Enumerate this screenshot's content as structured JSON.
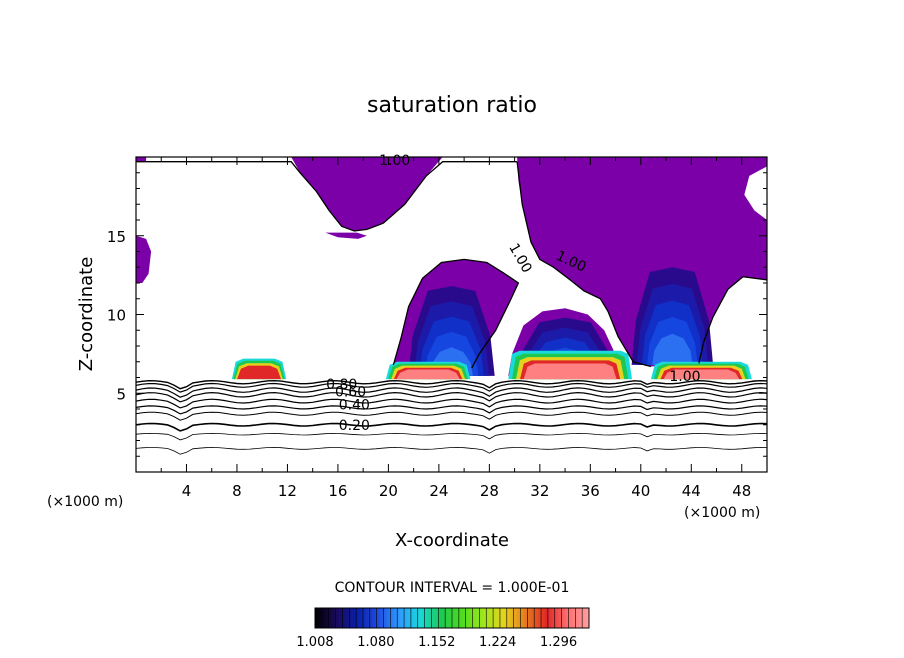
{
  "chart_data": {
    "type": "heatmap",
    "title": "saturation ratio",
    "xlabel": "X-coordinate",
    "ylabel": "Z-coordinate",
    "x_units": "(×1000 m)",
    "z_units": "(×1000 m)",
    "xlim": [
      0,
      50
    ],
    "ylim": [
      0,
      20
    ],
    "x_ticks": [
      4,
      8,
      12,
      16,
      20,
      24,
      28,
      32,
      36,
      40,
      44,
      48
    ],
    "y_ticks": [
      5,
      10,
      15
    ],
    "contour_labels": [
      {
        "text": "1.00",
        "x": 20.5,
        "z": 19.8
      },
      {
        "text": "1.00",
        "x": 30.5,
        "z": 13.6
      },
      {
        "text": "1.00",
        "x": 34.5,
        "z": 13.4
      },
      {
        "text": "1.00",
        "x": 43.5,
        "z": 6.1
      },
      {
        "text": "0.80",
        "x": 16.3,
        "z": 5.6
      },
      {
        "text": "0.60",
        "x": 17.0,
        "z": 5.1
      },
      {
        "text": "0.40",
        "x": 17.3,
        "z": 4.3
      },
      {
        "text": "0.20",
        "x": 17.3,
        "z": 3.0
      }
    ],
    "contour_interval_label": "CONTOUR INTERVAL = 1.000E-01",
    "colorbar": {
      "min": 1.008,
      "max": 1.332,
      "tick_labels": [
        "1.008",
        "1.080",
        "1.152",
        "1.224",
        "1.296"
      ],
      "colors": [
        "#000000",
        "#1a0a5a",
        "#0a1fa8",
        "#1f4de0",
        "#2f9aff",
        "#19d9d9",
        "#1ec850",
        "#4fdc1e",
        "#a0e61e",
        "#e6d21e",
        "#e67a1e",
        "#e02828",
        "#ff7070",
        "#ffa0a0"
      ]
    },
    "grid": false,
    "legend": "colorbar-bottom"
  }
}
